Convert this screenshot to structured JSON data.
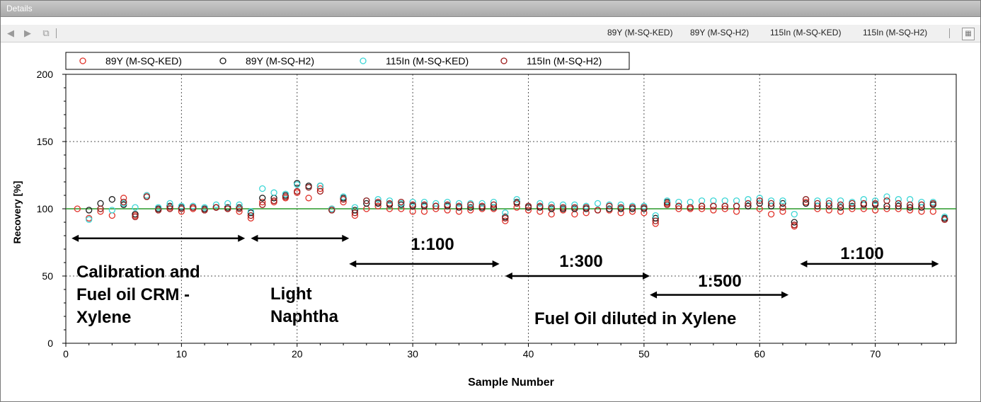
{
  "window": {
    "title": "Details"
  },
  "toolbar": {
    "icons": [
      "first-icon",
      "next-icon",
      "copy-icon"
    ],
    "series_labels": [
      "89Y (M-SQ-KED)",
      "89Y (M-SQ-H2)",
      "115In (M-SQ-KED)",
      "115In (M-SQ-H2)"
    ]
  },
  "colors": {
    "series1": "#e0332a",
    "series2": "#1a1a1a",
    "series3": "#3cd6d6",
    "series4": "#9b1b1b",
    "reference": "#2a9a2a",
    "arrow": "#000000"
  },
  "chart_data": {
    "type": "scatter",
    "xlabel": "Sample Number",
    "ylabel": "Recovery [%]",
    "xlim": [
      0,
      77
    ],
    "ylim": [
      0,
      200
    ],
    "xticks": [
      0,
      10,
      20,
      30,
      40,
      50,
      60,
      70
    ],
    "yticks": [
      0,
      50,
      100,
      150,
      200
    ],
    "grid": true,
    "legend": "top-left",
    "reference_line": 100,
    "series": [
      {
        "name": "89Y (M-SQ-KED)",
        "x": [
          1,
          2,
          3,
          4,
          5,
          6,
          7,
          8,
          9,
          10,
          11,
          12,
          13,
          14,
          15,
          16,
          17,
          18,
          19,
          20,
          21,
          22,
          23,
          24,
          25,
          26,
          27,
          28,
          29,
          30,
          31,
          32,
          33,
          34,
          35,
          36,
          37,
          38,
          39,
          40,
          41,
          42,
          43,
          44,
          45,
          46,
          47,
          48,
          49,
          50,
          51,
          52,
          53,
          54,
          55,
          56,
          57,
          58,
          59,
          60,
          61,
          62,
          63,
          64,
          65,
          66,
          67,
          68,
          69,
          70,
          71,
          72,
          73,
          74,
          75,
          76
        ],
        "y": [
          100,
          93,
          98,
          95,
          108,
          95,
          110,
          100,
          101,
          98,
          100,
          99,
          101,
          100,
          98,
          93,
          105,
          105,
          108,
          112,
          108,
          115,
          100,
          105,
          95,
          100,
          102,
          100,
          100,
          98,
          98,
          100,
          99,
          98,
          99,
          100,
          100,
          91,
          101,
          99,
          98,
          96,
          99,
          96,
          97,
          99,
          99,
          97,
          98,
          97,
          89,
          104,
          100,
          100,
          100,
          99,
          100,
          98,
          102,
          100,
          96,
          98,
          87,
          105,
          100,
          99,
          98,
          100,
          100,
          99,
          100,
          100,
          99,
          98,
          98,
          92
        ]
      },
      {
        "name": "89Y (M-SQ-H2)",
        "x": [
          1,
          2,
          3,
          4,
          5,
          6,
          7,
          8,
          9,
          10,
          11,
          12,
          13,
          14,
          15,
          16,
          17,
          18,
          19,
          20,
          21,
          22,
          23,
          24,
          25,
          26,
          27,
          28,
          29,
          30,
          31,
          32,
          33,
          34,
          35,
          36,
          37,
          38,
          39,
          40,
          41,
          42,
          43,
          44,
          45,
          46,
          47,
          48,
          49,
          50,
          51,
          52,
          53,
          54,
          55,
          56,
          57,
          58,
          59,
          60,
          61,
          62,
          63,
          64,
          65,
          66,
          67,
          68,
          69,
          70,
          71,
          72,
          73,
          74,
          75,
          76
        ],
        "y": [
          null,
          99,
          104,
          107,
          103,
          96,
          109,
          100,
          102,
          101,
          101,
          100,
          101,
          101,
          101,
          97,
          108,
          108,
          110,
          119,
          117,
          117,
          99,
          108,
          99,
          104,
          104,
          103,
          103,
          102,
          102,
          102,
          102,
          101,
          101,
          101,
          101,
          94,
          105,
          101,
          101,
          100,
          100,
          100,
          100,
          null,
          100,
          100,
          100,
          100,
          93,
          105,
          102,
          101,
          102,
          102,
          102,
          102,
          102,
          104,
          102,
          104,
          90,
          104,
          102,
          102,
          101,
          102,
          103,
          103,
          102,
          102,
          101,
          101,
          103,
          93
        ]
      },
      {
        "name": "115In (M-SQ-KED)",
        "x": [
          2,
          3,
          4,
          5,
          6,
          7,
          8,
          9,
          10,
          11,
          12,
          13,
          14,
          15,
          16,
          17,
          18,
          19,
          20,
          21,
          22,
          23,
          24,
          25,
          26,
          27,
          28,
          29,
          30,
          31,
          32,
          33,
          34,
          35,
          36,
          37,
          38,
          39,
          40,
          41,
          42,
          43,
          44,
          45,
          46,
          47,
          48,
          49,
          50,
          51,
          52,
          53,
          54,
          55,
          56,
          57,
          58,
          59,
          60,
          61,
          62,
          63,
          64,
          65,
          66,
          67,
          68,
          69,
          70,
          71,
          72,
          73,
          74,
          75,
          76
        ],
        "y": [
          92,
          100,
          99,
          104,
          101,
          110,
          101,
          104,
          102,
          102,
          101,
          103,
          104,
          103,
          98,
          115,
          112,
          111,
          118,
          116,
          117,
          100,
          109,
          101,
          106,
          107,
          106,
          104,
          105,
          105,
          104,
          105,
          104,
          104,
          104,
          105,
          97,
          107,
          102,
          104,
          103,
          103,
          103,
          102,
          104,
          103,
          103,
          102,
          102,
          95,
          106,
          105,
          105,
          106,
          106,
          106,
          106,
          107,
          108,
          106,
          106,
          96,
          107,
          106,
          106,
          106,
          105,
          107,
          106,
          109,
          107,
          107,
          105,
          105,
          94
        ]
      },
      {
        "name": "115In (M-SQ-H2)",
        "x": [
          3,
          4,
          5,
          6,
          7,
          8,
          9,
          10,
          11,
          12,
          13,
          14,
          15,
          16,
          17,
          18,
          19,
          20,
          21,
          22,
          23,
          24,
          25,
          26,
          27,
          28,
          29,
          30,
          31,
          32,
          33,
          34,
          35,
          36,
          37,
          38,
          39,
          40,
          41,
          42,
          43,
          44,
          45,
          46,
          47,
          48,
          49,
          50,
          51,
          52,
          53,
          54,
          55,
          56,
          57,
          58,
          59,
          60,
          61,
          62,
          63,
          64,
          65,
          66,
          67,
          68,
          69,
          70,
          71,
          72,
          73,
          74,
          75,
          76
        ],
        "y": [
          100,
          null,
          105,
          94,
          109,
          99,
          100,
          100,
          101,
          99,
          101,
          100,
          100,
          95,
          103,
          106,
          109,
          113,
          116,
          113,
          99,
          107,
          97,
          106,
          105,
          104,
          105,
          103,
          103,
          102,
          103,
          102,
          103,
          102,
          103,
          93,
          104,
          102,
          102,
          101,
          101,
          101,
          101,
          99,
          102,
          101,
          101,
          101,
          91,
          103,
          102,
          101,
          102,
          102,
          102,
          102,
          104,
          106,
          104,
          101,
          88,
          107,
          104,
          104,
          103,
          104,
          104,
          104,
          106,
          104,
          103,
          103,
          104,
          92
        ]
      }
    ],
    "annotations": [
      {
        "kind": "arrow",
        "x1": 0.5,
        "x2": 15.5,
        "y": 78
      },
      {
        "kind": "arrow",
        "x1": 16,
        "x2": 24.5,
        "y": 78
      },
      {
        "kind": "arrow",
        "x1": 24.5,
        "x2": 37.5,
        "y": 59
      },
      {
        "kind": "arrow",
        "x1": 38,
        "x2": 50.5,
        "y": 50
      },
      {
        "kind": "arrow",
        "x1": 50.5,
        "x2": 62.5,
        "y": 36
      },
      {
        "kind": "arrow",
        "x1": 63.5,
        "x2": 75.5,
        "y": 59
      }
    ],
    "labels": [
      {
        "lines": [
          "Calibration and",
          "Fuel oil CRM -",
          "Xylene"
        ]
      },
      {
        "lines": [
          "Light",
          "Naphtha"
        ]
      },
      {
        "lines": [
          "1:100"
        ]
      },
      {
        "lines": [
          "1:300"
        ]
      },
      {
        "lines": [
          "1:500"
        ]
      },
      {
        "lines": [
          "1:100"
        ]
      },
      {
        "lines": [
          "Fuel Oil diluted in Xylene"
        ]
      }
    ]
  }
}
